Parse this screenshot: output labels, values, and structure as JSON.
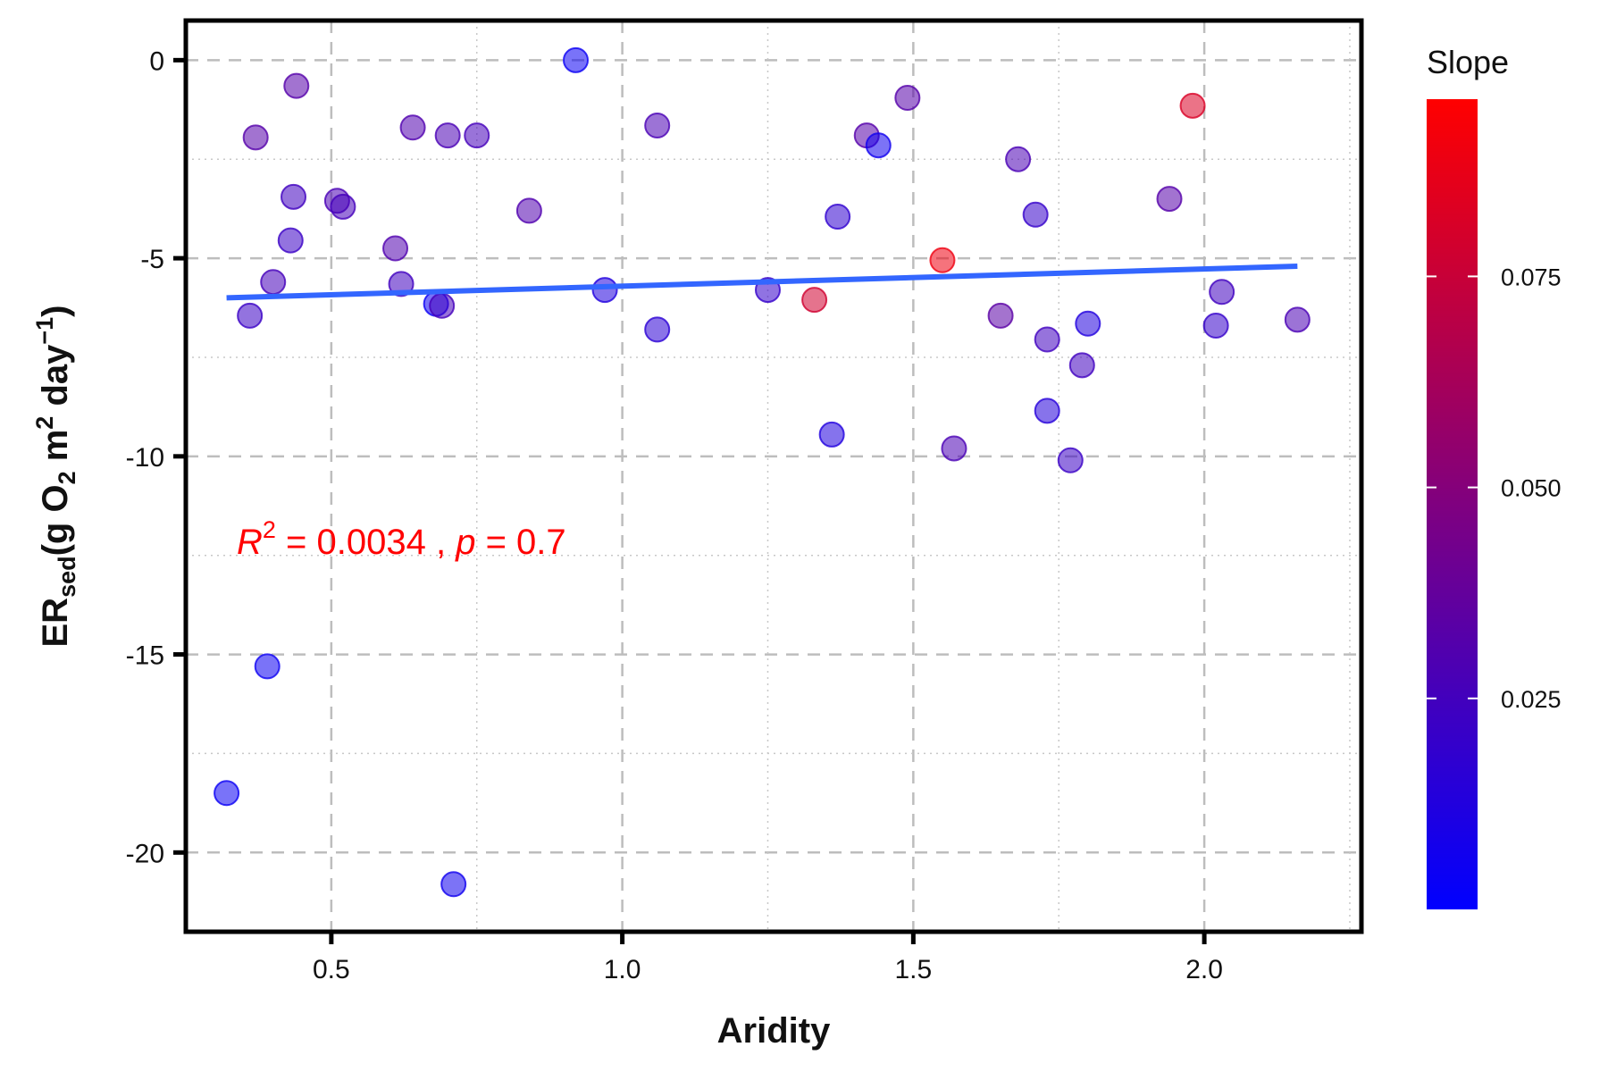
{
  "chart_data": {
    "type": "scatter",
    "xlabel": "Aridity",
    "ylabel": {
      "main": "ER",
      "sub": "sed",
      "unit_parts": [
        "(g O",
        "2",
        " m",
        "2",
        " day",
        "−1",
        ")"
      ]
    },
    "xlim": [
      0.25,
      2.27
    ],
    "ylim": [
      -22.0,
      1.0
    ],
    "x_ticks": [
      0.5,
      1.0,
      1.5,
      2.0
    ],
    "x_tick_labels": [
      "0.5",
      "1.0",
      "1.5",
      "2.0"
    ],
    "y_ticks": [
      0,
      -5,
      -10,
      -15,
      -20
    ],
    "y_tick_labels": [
      "0",
      "-5",
      "-10",
      "-15",
      "-20"
    ],
    "grid": {
      "major": "dashed",
      "minor": "dotted"
    },
    "colorbar": {
      "title": "Slope",
      "range": [
        0.0,
        0.096
      ],
      "ticks": [
        0.025,
        0.05,
        0.075
      ],
      "tick_labels": [
        "0.025",
        "0.050",
        "0.075"
      ],
      "low_color": "#0000ff",
      "high_color": "#ff0000"
    },
    "annotation": {
      "r_label": "R",
      "r_sup": "2",
      "r_value": " = 0.0034 , ",
      "p_label": "p",
      "p_value": " = 0.7",
      "color": "#ff0000"
    },
    "fit_line": {
      "x": [
        0.32,
        2.16
      ],
      "y": [
        -6.0,
        -5.2
      ],
      "color": "#3366ff"
    },
    "points": [
      {
        "x": 0.32,
        "y": -18.5,
        "slope": 0.004
      },
      {
        "x": 0.36,
        "y": -6.45,
        "slope": 0.022
      },
      {
        "x": 0.37,
        "y": -1.95,
        "slope": 0.032
      },
      {
        "x": 0.39,
        "y": -15.3,
        "slope": 0.005
      },
      {
        "x": 0.4,
        "y": -5.6,
        "slope": 0.026
      },
      {
        "x": 0.43,
        "y": -4.55,
        "slope": 0.022
      },
      {
        "x": 0.435,
        "y": -3.45,
        "slope": 0.024
      },
      {
        "x": 0.44,
        "y": -0.65,
        "slope": 0.032
      },
      {
        "x": 0.51,
        "y": -3.55,
        "slope": 0.028
      },
      {
        "x": 0.52,
        "y": -3.7,
        "slope": 0.026
      },
      {
        "x": 0.61,
        "y": -4.75,
        "slope": 0.03
      },
      {
        "x": 0.62,
        "y": -5.65,
        "slope": 0.024
      },
      {
        "x": 0.64,
        "y": -1.7,
        "slope": 0.03
      },
      {
        "x": 0.68,
        "y": -6.15,
        "slope": 0.004
      },
      {
        "x": 0.69,
        "y": -6.2,
        "slope": 0.026
      },
      {
        "x": 0.7,
        "y": -1.9,
        "slope": 0.028
      },
      {
        "x": 0.71,
        "y": -20.8,
        "slope": 0.006
      },
      {
        "x": 0.75,
        "y": -1.9,
        "slope": 0.026
      },
      {
        "x": 0.84,
        "y": -3.8,
        "slope": 0.03
      },
      {
        "x": 0.92,
        "y": 0.0,
        "slope": 0.004
      },
      {
        "x": 0.97,
        "y": -5.8,
        "slope": 0.012
      },
      {
        "x": 1.06,
        "y": -1.65,
        "slope": 0.028
      },
      {
        "x": 1.06,
        "y": -6.8,
        "slope": 0.016
      },
      {
        "x": 1.25,
        "y": -5.8,
        "slope": 0.02
      },
      {
        "x": 1.33,
        "y": -6.05,
        "slope": 0.078
      },
      {
        "x": 1.36,
        "y": -9.45,
        "slope": 0.012
      },
      {
        "x": 1.37,
        "y": -3.95,
        "slope": 0.018
      },
      {
        "x": 1.42,
        "y": -1.9,
        "slope": 0.032
      },
      {
        "x": 1.44,
        "y": -2.15,
        "slope": 0.006
      },
      {
        "x": 1.49,
        "y": -0.95,
        "slope": 0.032
      },
      {
        "x": 1.55,
        "y": -5.05,
        "slope": 0.09
      },
      {
        "x": 1.57,
        "y": -9.8,
        "slope": 0.028
      },
      {
        "x": 1.65,
        "y": -6.45,
        "slope": 0.034
      },
      {
        "x": 1.68,
        "y": -2.5,
        "slope": 0.028
      },
      {
        "x": 1.71,
        "y": -3.9,
        "slope": 0.02
      },
      {
        "x": 1.73,
        "y": -8.85,
        "slope": 0.014
      },
      {
        "x": 1.73,
        "y": -7.05,
        "slope": 0.024
      },
      {
        "x": 1.77,
        "y": -10.1,
        "slope": 0.022
      },
      {
        "x": 1.79,
        "y": -7.7,
        "slope": 0.024
      },
      {
        "x": 1.8,
        "y": -6.65,
        "slope": 0.012
      },
      {
        "x": 1.94,
        "y": -3.5,
        "slope": 0.032
      },
      {
        "x": 1.98,
        "y": -1.15,
        "slope": 0.082
      },
      {
        "x": 2.02,
        "y": -6.7,
        "slope": 0.02
      },
      {
        "x": 2.03,
        "y": -5.85,
        "slope": 0.024
      },
      {
        "x": 2.16,
        "y": -6.55,
        "slope": 0.028
      }
    ]
  }
}
